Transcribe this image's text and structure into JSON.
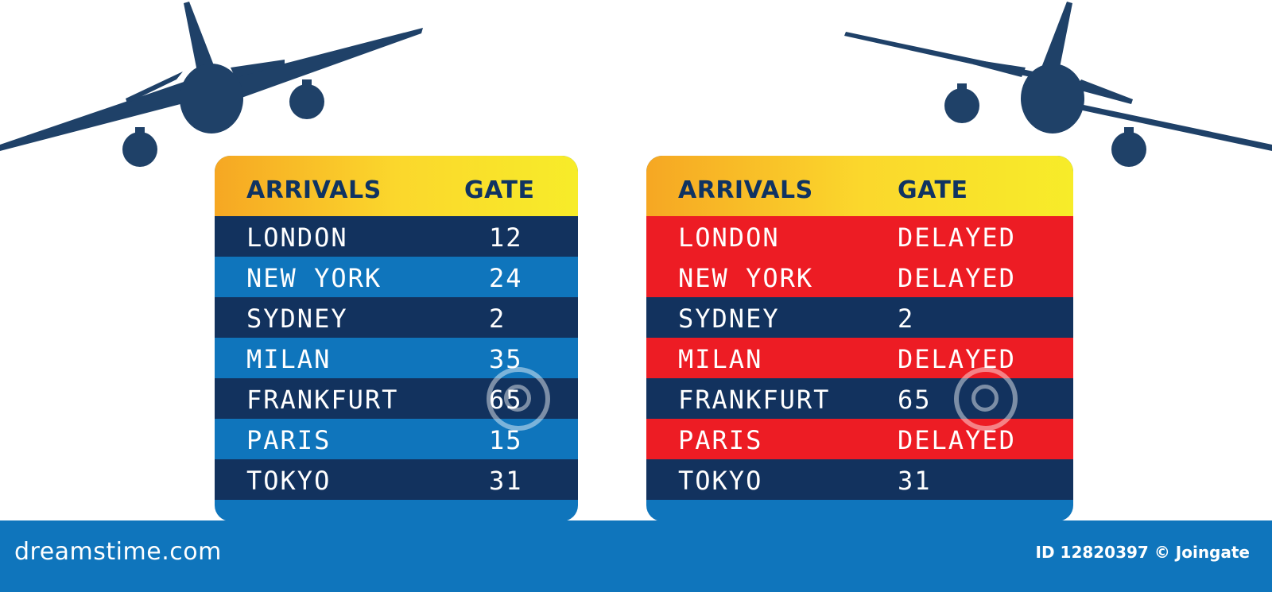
{
  "colors": {
    "plane": "#1f4168",
    "navy_row": "#12325e",
    "blue_row": "#0f75bc",
    "red_row": "#ed1c24",
    "header_text": "#0f3362"
  },
  "boards": {
    "left": {
      "header_arrivals": "ARRIVALS",
      "header_gate": "GATE",
      "rows": [
        {
          "city": "LONDON",
          "gate": "12"
        },
        {
          "city": "NEW YORK",
          "gate": "24"
        },
        {
          "city": "SYDNEY",
          "gate": "2"
        },
        {
          "city": "MILAN",
          "gate": "35"
        },
        {
          "city": "FRANKFURT",
          "gate": "65"
        },
        {
          "city": "PARIS",
          "gate": "15"
        },
        {
          "city": "TOKYO",
          "gate": "31"
        }
      ]
    },
    "right": {
      "header_arrivals": "ARRIVALS",
      "header_gate": "GATE",
      "rows": [
        {
          "city": "LONDON",
          "gate": "DELAYED"
        },
        {
          "city": "NEW YORK",
          "gate": "DELAYED"
        },
        {
          "city": "SYDNEY",
          "gate": "2"
        },
        {
          "city": "MILAN",
          "gate": "DELAYED"
        },
        {
          "city": "FRANKFURT",
          "gate": "65"
        },
        {
          "city": "PARIS",
          "gate": "DELAYED"
        },
        {
          "city": "TOKYO",
          "gate": "31"
        }
      ]
    }
  },
  "footer": {
    "logo": "dreamstime.com",
    "id_text": "ID 12820397 © Joingate"
  }
}
